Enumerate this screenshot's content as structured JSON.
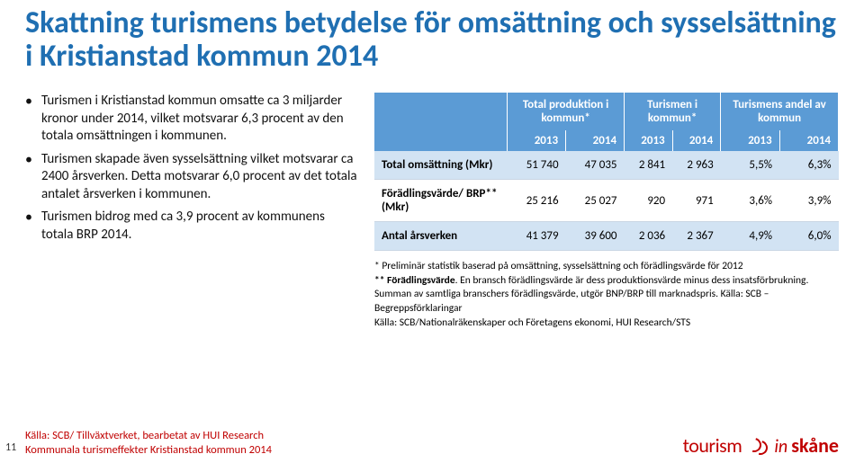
{
  "title": "Skattning turismens betydelse för omsättning och sysselsättning i Kristianstad kommun 2014",
  "bullets": [
    "Turismen i Kristianstad kommun omsatte ca 3 miljarder kronor under 2014, vilket motsvarar 6,3 procent av den totala omsättningen i kommunen.",
    "Turismen skapade även sysselsättning vilket motsvarar ca 2400 årsverken. Detta motsvarar 6,0 procent av det totala antalet årsverken i kommunen.",
    "Turismen bidrog med ca 3,9 procent av kommunens totala BRP 2014."
  ],
  "table": {
    "groupHeaders": [
      "",
      "Total produktion i kommun*",
      "Turismen i kommun*",
      "Turismens andel av kommun"
    ],
    "years": [
      "",
      "2013",
      "2014",
      "2013",
      "2014",
      "2013",
      "2014"
    ],
    "rows": [
      {
        "band": true,
        "cells": [
          "Total omsättning (Mkr)",
          "51 740",
          "47 035",
          "2 841",
          "2 963",
          "5,5%",
          "6,3%"
        ]
      },
      {
        "band": false,
        "cells": [
          "Förädlingsvärde/ BRP** (Mkr)",
          "25 216",
          "25 027",
          "920",
          "971",
          "3,6%",
          "3,9%"
        ]
      },
      {
        "band": true,
        "cells": [
          "Antal årsverken",
          "41 379",
          "39 600",
          "2 036",
          "2 367",
          "4,9%",
          "6,0%"
        ]
      }
    ],
    "colors": {
      "headerBg": "#5b9bd5",
      "bandBg": "#d2e3f3",
      "headerText": "#ffffff"
    }
  },
  "footnotes": {
    "l1": "* Preliminär statistik baserad på omsättning, sysselsättning och förädlingsvärde för 2012",
    "l2a": "** Förädlingsvärde",
    "l2b": ". En bransch förädlingsvärde är dess produktionsvärde minus dess insatsförbrukning. Summan av samtliga branschers förädlingsvärde, utgör BNP/BRP till marknadspris. Källa: SCB – Begreppsförklaringar",
    "l3": "Källa: SCB/Nationalräkenskaper och Företagens ekonomi, HUI Research/STS"
  },
  "footer": {
    "source1": "Källa: SCB/ Tillväxtverket, bearbetat av HUI Research",
    "source2": "Kommunala turismeffekter Kristianstad kommun 2014",
    "page": "11"
  },
  "logo": {
    "t1": "tourism",
    "t2": "in",
    "t3": "skåne"
  }
}
